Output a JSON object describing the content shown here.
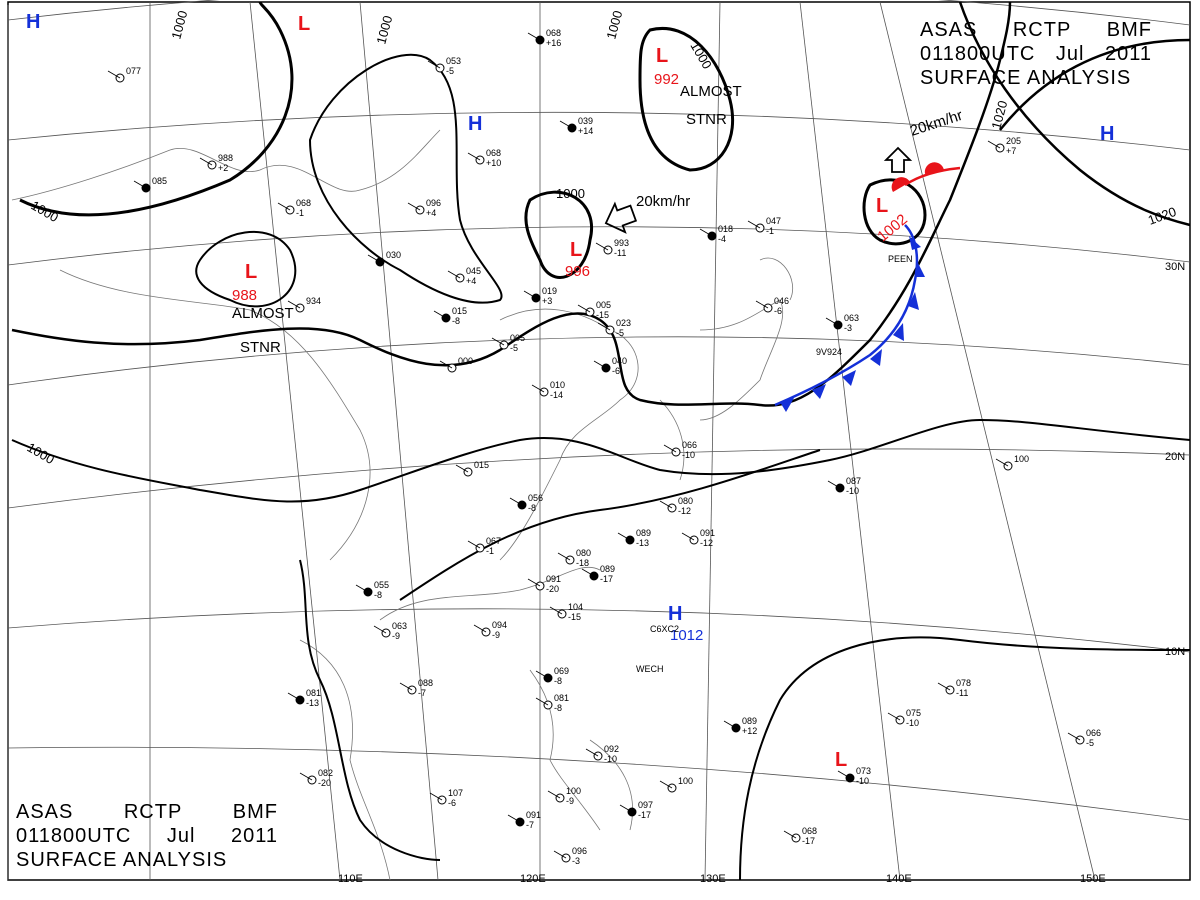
{
  "header": {
    "agency_line": [
      "ASAS",
      "RCTP",
      "BMF"
    ],
    "date_line": [
      "011800UTC",
      "Jul",
      "2011"
    ],
    "product": "SURFACE ANALYSIS"
  },
  "colors": {
    "low": "#e8141a",
    "high": "#1430d8",
    "front": "#1430d8",
    "ink": "#000000",
    "grid": "#555555"
  },
  "longitudes": [
    "110E",
    "120E",
    "130E",
    "140E",
    "150E"
  ],
  "latitudes": [
    "30N",
    "20N",
    "10N"
  ],
  "isobar_labels": [
    "1000",
    "1000",
    "1000",
    "1000",
    "1000",
    "1000",
    "1000",
    "1020",
    "1020"
  ],
  "pressure_centers": {
    "lows": [
      {
        "symbol": "L",
        "value": "988",
        "note": [
          "ALMOST",
          "STNR"
        ]
      },
      {
        "symbol": "L",
        "value": "996"
      },
      {
        "symbol": "L",
        "value": "992",
        "note": [
          "ALMOST",
          "STNR"
        ]
      },
      {
        "symbol": "L",
        "value": "1002"
      },
      {
        "symbol": "L",
        "value": ""
      },
      {
        "symbol": "L",
        "value": ""
      }
    ],
    "highs": [
      {
        "symbol": "H",
        "value": "1012"
      },
      {
        "symbol": "H",
        "value": ""
      },
      {
        "symbol": "H",
        "value": ""
      },
      {
        "symbol": "H",
        "value": ""
      }
    ]
  },
  "motion_vectors": [
    "20km/hr",
    "20km/hr"
  ],
  "fronts": [
    {
      "type": "cold front"
    },
    {
      "type": "warm front"
    }
  ],
  "stations": [
    {
      "pressure": "068",
      "tend": "+16"
    },
    {
      "pressure": "053",
      "tend": "-5"
    },
    {
      "pressure": "077",
      "tend": ""
    },
    {
      "pressure": "039",
      "tend": "+14"
    },
    {
      "pressure": "068",
      "tend": "+10"
    },
    {
      "pressure": "988",
      "tend": "+2"
    },
    {
      "pressure": "085",
      "tend": ""
    },
    {
      "pressure": "096",
      "tend": "+4"
    },
    {
      "pressure": "068",
      "tend": "-1"
    },
    {
      "pressure": "030",
      "tend": ""
    },
    {
      "pressure": "045",
      "tend": "+4"
    },
    {
      "pressure": "934",
      "tend": ""
    },
    {
      "pressure": "015",
      "tend": "-8"
    },
    {
      "pressure": "005",
      "tend": "-5"
    },
    {
      "pressure": "005",
      "tend": "-15"
    },
    {
      "pressure": "019",
      "tend": "+3"
    },
    {
      "pressure": "993",
      "tend": "-11"
    },
    {
      "pressure": "023",
      "tend": "-5"
    },
    {
      "pressure": "040",
      "tend": "-6"
    },
    {
      "pressure": "000",
      "tend": ""
    },
    {
      "pressure": "010",
      "tend": "-14"
    },
    {
      "pressure": "018",
      "tend": "-4"
    },
    {
      "pressure": "047",
      "tend": "-1"
    },
    {
      "pressure": "046",
      "tend": "-6"
    },
    {
      "pressure": "063",
      "tend": "-3"
    },
    {
      "pressure": "066",
      "tend": "-10"
    },
    {
      "pressure": "015",
      "tend": ""
    },
    {
      "pressure": "056",
      "tend": "-8"
    },
    {
      "pressure": "080",
      "tend": "-12"
    },
    {
      "pressure": "067",
      "tend": "-1"
    },
    {
      "pressure": "089",
      "tend": "-13"
    },
    {
      "pressure": "091",
      "tend": "-12"
    },
    {
      "pressure": "080",
      "tend": "-18"
    },
    {
      "pressure": "089",
      "tend": "-17"
    },
    {
      "pressure": "091",
      "tend": "-20"
    },
    {
      "pressure": "104",
      "tend": "-15"
    },
    {
      "pressure": "055",
      "tend": "-8"
    },
    {
      "pressure": "063",
      "tend": "-9"
    },
    {
      "pressure": "094",
      "tend": "-9"
    },
    {
      "pressure": "087",
      "tend": "-10"
    },
    {
      "pressure": "100",
      "tend": ""
    },
    {
      "pressure": "205",
      "tend": "+7"
    },
    {
      "pressure": "081",
      "tend": "-13"
    },
    {
      "pressure": "088",
      "tend": "-7"
    },
    {
      "pressure": "081",
      "tend": "-8"
    },
    {
      "pressure": "069",
      "tend": "-8"
    },
    {
      "pressure": "082",
      "tend": "-20"
    },
    {
      "pressure": "107",
      "tend": "-6"
    },
    {
      "pressure": "091",
      "tend": "-7"
    },
    {
      "pressure": "100",
      "tend": "-9"
    },
    {
      "pressure": "092",
      "tend": "-10"
    },
    {
      "pressure": "097",
      "tend": "-17"
    },
    {
      "pressure": "100",
      "tend": ""
    },
    {
      "pressure": "096",
      "tend": "-3"
    },
    {
      "pressure": "089",
      "tend": "+12"
    },
    {
      "pressure": "075",
      "tend": "-10"
    },
    {
      "pressure": "078",
      "tend": "-11"
    },
    {
      "pressure": "073",
      "tend": "-10"
    },
    {
      "pressure": "068",
      "tend": "-17"
    },
    {
      "pressure": "066",
      "tend": "-5"
    }
  ],
  "station_ids": [
    "PEEN",
    "9V924",
    "C6XC2",
    "WECH"
  ]
}
